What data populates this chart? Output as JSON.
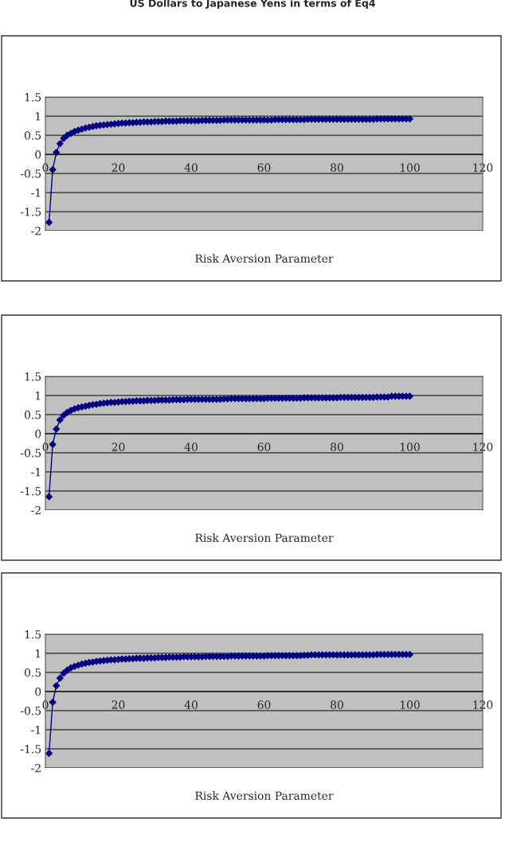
{
  "chart_data": [
    {
      "type": "line",
      "title": "US Dollars to Japanese Yens in terms of Eq4",
      "xlabel": "Risk Aversion Parameter",
      "marker": "diamond",
      "line_style": "solid",
      "grid": "y",
      "xlim": [
        0,
        120
      ],
      "xticks": [
        0,
        20,
        40,
        60,
        80,
        100,
        120
      ],
      "ylim": [
        -2,
        1.5
      ],
      "yticks": [
        -2,
        -1.5,
        -1,
        -0.5,
        0,
        0.5,
        1,
        1.5
      ],
      "x": [
        1,
        2,
        3,
        4,
        5,
        6,
        7,
        8,
        9,
        10,
        11,
        12,
        13,
        14,
        15,
        16,
        17,
        18,
        19,
        20,
        21,
        22,
        23,
        24,
        25,
        26,
        27,
        28,
        29,
        30,
        31,
        32,
        33,
        34,
        35,
        36,
        37,
        38,
        39,
        40,
        41,
        42,
        43,
        44,
        45,
        46,
        47,
        48,
        49,
        50,
        51,
        52,
        53,
        54,
        55,
        56,
        57,
        58,
        59,
        60,
        61,
        62,
        63,
        64,
        65,
        66,
        67,
        68,
        69,
        70,
        71,
        72,
        73,
        74,
        75,
        76,
        77,
        78,
        79,
        80,
        81,
        82,
        83,
        84,
        85,
        86,
        87,
        88,
        89,
        90,
        91,
        92,
        93,
        94,
        95,
        96,
        97,
        98,
        99,
        100
      ],
      "series": [
        {
          "color": "#000080",
          "values": [
            -1.78,
            -0.4,
            0.05,
            0.28,
            0.42,
            0.5,
            0.55,
            0.6,
            0.63,
            0.66,
            0.69,
            0.71,
            0.73,
            0.75,
            0.76,
            0.77,
            0.78,
            0.79,
            0.8,
            0.81,
            0.82,
            0.82,
            0.83,
            0.83,
            0.84,
            0.84,
            0.85,
            0.85,
            0.85,
            0.86,
            0.86,
            0.86,
            0.87,
            0.87,
            0.87,
            0.87,
            0.88,
            0.88,
            0.88,
            0.88,
            0.88,
            0.88,
            0.89,
            0.89,
            0.89,
            0.89,
            0.89,
            0.89,
            0.9,
            0.9,
            0.9,
            0.9,
            0.9,
            0.9,
            0.9,
            0.9,
            0.9,
            0.9,
            0.9,
            0.9,
            0.9,
            0.9,
            0.91,
            0.91,
            0.91,
            0.91,
            0.91,
            0.91,
            0.91,
            0.91,
            0.91,
            0.92,
            0.92,
            0.92,
            0.92,
            0.92,
            0.92,
            0.92,
            0.92,
            0.92,
            0.92,
            0.92,
            0.92,
            0.92,
            0.92,
            0.92,
            0.92,
            0.92,
            0.92,
            0.92,
            0.93,
            0.93,
            0.93,
            0.93,
            0.93,
            0.93,
            0.93,
            0.93,
            0.93,
            0.93
          ]
        }
      ]
    },
    {
      "type": "line",
      "xlabel": "Risk Aversion Parameter",
      "marker": "diamond",
      "line_style": "solid",
      "grid": "y",
      "xlim": [
        0,
        120
      ],
      "xticks": [
        0,
        20,
        40,
        60,
        80,
        100,
        120
      ],
      "ylim": [
        -2,
        1.5
      ],
      "yticks": [
        -2,
        -1.5,
        -1,
        -0.5,
        0,
        0.5,
        1,
        1.5
      ],
      "x": [
        1,
        2,
        3,
        4,
        5,
        6,
        7,
        8,
        9,
        10,
        11,
        12,
        13,
        14,
        15,
        16,
        17,
        18,
        19,
        20,
        21,
        22,
        23,
        24,
        25,
        26,
        27,
        28,
        29,
        30,
        31,
        32,
        33,
        34,
        35,
        36,
        37,
        38,
        39,
        40,
        41,
        42,
        43,
        44,
        45,
        46,
        47,
        48,
        49,
        50,
        51,
        52,
        53,
        54,
        55,
        56,
        57,
        58,
        59,
        60,
        61,
        62,
        63,
        64,
        65,
        66,
        67,
        68,
        69,
        70,
        71,
        72,
        73,
        74,
        75,
        76,
        77,
        78,
        79,
        80,
        81,
        82,
        83,
        84,
        85,
        86,
        87,
        88,
        89,
        90,
        91,
        92,
        93,
        94,
        95,
        96,
        97,
        98,
        99,
        100
      ],
      "series": [
        {
          "color": "#000080",
          "values": [
            -1.65,
            -0.28,
            0.12,
            0.36,
            0.48,
            0.56,
            0.61,
            0.65,
            0.68,
            0.7,
            0.72,
            0.74,
            0.76,
            0.77,
            0.79,
            0.8,
            0.81,
            0.82,
            0.82,
            0.83,
            0.84,
            0.84,
            0.85,
            0.85,
            0.86,
            0.86,
            0.86,
            0.87,
            0.87,
            0.87,
            0.88,
            0.88,
            0.88,
            0.88,
            0.89,
            0.89,
            0.89,
            0.89,
            0.9,
            0.9,
            0.9,
            0.9,
            0.9,
            0.9,
            0.9,
            0.9,
            0.9,
            0.9,
            0.91,
            0.91,
            0.92,
            0.92,
            0.92,
            0.92,
            0.92,
            0.92,
            0.92,
            0.92,
            0.92,
            0.92,
            0.93,
            0.93,
            0.93,
            0.93,
            0.93,
            0.93,
            0.93,
            0.93,
            0.93,
            0.93,
            0.94,
            0.94,
            0.94,
            0.94,
            0.94,
            0.94,
            0.94,
            0.94,
            0.94,
            0.94,
            0.95,
            0.95,
            0.95,
            0.95,
            0.95,
            0.95,
            0.95,
            0.95,
            0.95,
            0.95,
            0.96,
            0.96,
            0.96,
            0.96,
            0.98,
            0.98,
            0.98,
            0.98,
            0.98,
            0.98
          ]
        }
      ]
    },
    {
      "type": "line",
      "xlabel": "Risk Aversion Parameter",
      "marker": "diamond",
      "line_style": "solid",
      "grid": "y",
      "xlim": [
        0,
        120
      ],
      "xticks": [
        0,
        20,
        40,
        60,
        80,
        100,
        120
      ],
      "ylim": [
        -2,
        1.5
      ],
      "yticks": [
        -2,
        -1.5,
        -1,
        -0.5,
        0,
        0.5,
        1,
        1.5
      ],
      "x": [
        1,
        2,
        3,
        4,
        5,
        6,
        7,
        8,
        9,
        10,
        11,
        12,
        13,
        14,
        15,
        16,
        17,
        18,
        19,
        20,
        21,
        22,
        23,
        24,
        25,
        26,
        27,
        28,
        29,
        30,
        31,
        32,
        33,
        34,
        35,
        36,
        37,
        38,
        39,
        40,
        41,
        42,
        43,
        44,
        45,
        46,
        47,
        48,
        49,
        50,
        51,
        52,
        53,
        54,
        55,
        56,
        57,
        58,
        59,
        60,
        61,
        62,
        63,
        64,
        65,
        66,
        67,
        68,
        69,
        70,
        71,
        72,
        73,
        74,
        75,
        76,
        77,
        78,
        79,
        80,
        81,
        82,
        83,
        84,
        85,
        86,
        87,
        88,
        89,
        90,
        91,
        92,
        93,
        94,
        95,
        96,
        97,
        98,
        99,
        100
      ],
      "series": [
        {
          "color": "#000080",
          "values": [
            -1.62,
            -0.28,
            0.15,
            0.35,
            0.48,
            0.56,
            0.62,
            0.66,
            0.69,
            0.72,
            0.74,
            0.76,
            0.77,
            0.79,
            0.8,
            0.81,
            0.82,
            0.83,
            0.83,
            0.84,
            0.85,
            0.85,
            0.86,
            0.86,
            0.87,
            0.87,
            0.87,
            0.88,
            0.88,
            0.88,
            0.89,
            0.89,
            0.89,
            0.9,
            0.9,
            0.9,
            0.9,
            0.91,
            0.91,
            0.91,
            0.91,
            0.91,
            0.91,
            0.92,
            0.92,
            0.92,
            0.92,
            0.92,
            0.92,
            0.92,
            0.93,
            0.93,
            0.93,
            0.93,
            0.93,
            0.93,
            0.93,
            0.93,
            0.93,
            0.93,
            0.94,
            0.94,
            0.94,
            0.94,
            0.94,
            0.94,
            0.94,
            0.94,
            0.94,
            0.94,
            0.95,
            0.95,
            0.96,
            0.96,
            0.96,
            0.96,
            0.96,
            0.96,
            0.96,
            0.96,
            0.96,
            0.96,
            0.96,
            0.96,
            0.96,
            0.96,
            0.96,
            0.96,
            0.96,
            0.96,
            0.97,
            0.97,
            0.97,
            0.97,
            0.97,
            0.97,
            0.97,
            0.97,
            0.97,
            0.97
          ]
        }
      ]
    }
  ]
}
